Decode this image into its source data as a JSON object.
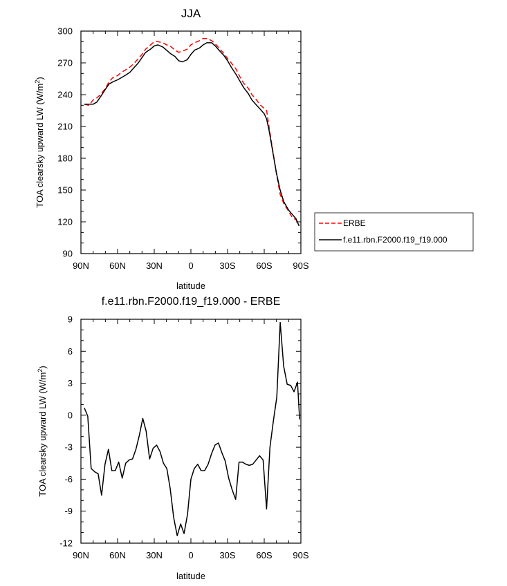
{
  "charts": [
    {
      "title": "JJA",
      "xlabel": "latitude",
      "ylabel_prefix": "TOA clearsky upward LW (W/m",
      "ylabel_sup": "2",
      "ylabel_suffix": ")"
    },
    {
      "title": "f.e11.rbn.F2000.f19_f19.000 - ERBE",
      "xlabel": "latitude",
      "ylabel_prefix": "TOA clearsky upward LW (W/m",
      "ylabel_sup": "2",
      "ylabel_suffix": ")"
    }
  ],
  "chart_data": [
    {
      "type": "line",
      "title": "JJA",
      "xlabel": "latitude",
      "ylabel": "TOA clearsky upward LW (W/m2)",
      "xlim": [
        90,
        -90
      ],
      "ylim": [
        90,
        300
      ],
      "x_ticks": [
        90,
        60,
        30,
        0,
        -30,
        -60,
        -90
      ],
      "x_tick_labels": [
        "90N",
        "60N",
        "30N",
        "0",
        "30S",
        "60S",
        "90S"
      ],
      "y_ticks": [
        90,
        120,
        150,
        180,
        210,
        240,
        270,
        300
      ],
      "y_tick_labels": [
        "90",
        "120",
        "150",
        "180",
        "210",
        "240",
        "270",
        "300"
      ],
      "legend": "outside-right",
      "series": [
        {
          "name": "ERBE",
          "color": "#ff0000",
          "dash": true,
          "x": [
            87.2,
            83.5,
            80,
            77,
            74,
            70,
            67,
            64,
            60,
            57,
            54,
            50,
            47,
            43,
            40,
            37,
            33,
            30,
            27,
            23,
            20,
            17,
            13,
            10,
            7,
            3,
            0,
            -3,
            -7,
            -10,
            -13,
            -17,
            -20,
            -23,
            -27,
            -30,
            -33,
            -37,
            -40,
            -43,
            -47,
            -50,
            -53,
            -57,
            -60,
            -62,
            -64,
            -67,
            -70,
            -73,
            -76,
            -80,
            -83,
            -86,
            -88.5
          ],
          "y": [
            231,
            230,
            235,
            237,
            240,
            246,
            252,
            256,
            258,
            261,
            263,
            266,
            269,
            274,
            278,
            283,
            287,
            290,
            290,
            289,
            287,
            286,
            282,
            280,
            281,
            283,
            287,
            289,
            291,
            293,
            293,
            291,
            288,
            284,
            279,
            274,
            270,
            264,
            257,
            251,
            246,
            240,
            236,
            230,
            227,
            225,
            209,
            187,
            165,
            146,
            137,
            130,
            124,
            122,
            117
          ]
        },
        {
          "name": "f.e11.rbn.F2000.f19_f19.000",
          "color": "#000000",
          "dash": false,
          "x": [
            87.2,
            83.5,
            80,
            77,
            74,
            70,
            67,
            64,
            60,
            57,
            54,
            50,
            47,
            43,
            40,
            37,
            33,
            30,
            27,
            23,
            20,
            17,
            13,
            10,
            7,
            3,
            0,
            -3,
            -7,
            -10,
            -13,
            -17,
            -20,
            -23,
            -27,
            -30,
            -33,
            -37,
            -40,
            -43,
            -47,
            -50,
            -53,
            -57,
            -60,
            -62,
            -64,
            -67,
            -70,
            -73,
            -76,
            -80,
            -83,
            -86,
            -88.5
          ],
          "y": [
            231,
            231,
            231,
            233,
            238,
            245,
            250,
            252,
            254,
            256,
            258,
            261,
            265,
            270,
            275,
            280,
            283,
            286,
            287,
            285,
            282,
            279,
            276,
            272,
            271,
            273,
            278,
            282,
            284,
            287,
            289,
            289,
            286,
            282,
            277,
            272,
            266,
            259,
            253,
            247,
            241,
            235,
            231,
            226,
            222,
            217,
            206,
            186,
            166,
            150,
            139,
            131,
            127,
            123,
            116
          ]
        }
      ]
    },
    {
      "type": "line",
      "title": "f.e11.rbn.F2000.f19_f19.000 - ERBE",
      "xlabel": "latitude",
      "ylabel": "TOA clearsky upward LW (W/m2)",
      "xlim": [
        90,
        -90
      ],
      "ylim": [
        -12,
        9
      ],
      "x_ticks": [
        90,
        60,
        30,
        0,
        -30,
        -60,
        -90
      ],
      "x_tick_labels": [
        "90N",
        "60N",
        "30N",
        "0",
        "30S",
        "60S",
        "90S"
      ],
      "y_ticks": [
        -12,
        -9,
        -6,
        -3,
        0,
        3,
        6,
        9
      ],
      "y_tick_labels": [
        "-12",
        "-9",
        "-6",
        "-3",
        "0",
        "3",
        "6",
        "9"
      ],
      "series": [
        {
          "color": "#000000",
          "x": [
            87.2,
            84.4,
            81.6,
            78.8,
            75.9,
            73.1,
            70.3,
            67.5,
            64.7,
            61.9,
            59.1,
            56.2,
            53.4,
            50.6,
            47.8,
            45,
            42.2,
            39.4,
            36.6,
            33.8,
            30.9,
            28.1,
            25.3,
            22.5,
            19.7,
            16.9,
            14.1,
            11.2,
            8.4,
            5.6,
            2.8,
            0,
            -2.8,
            -5.6,
            -8.4,
            -11.2,
            -14.1,
            -16.9,
            -19.7,
            -22.5,
            -25.3,
            -28.1,
            -30.9,
            -33.8,
            -36.6,
            -39.4,
            -42.2,
            -45,
            -47.8,
            -50.6,
            -53.4,
            -56.2,
            -59.1,
            -61.9,
            -64.7,
            -67.5,
            -70.3,
            -73.1,
            -75.9,
            -78.8,
            -81.6,
            -84.4,
            -87.2,
            -89
          ],
          "y": [
            0.7,
            -0.1,
            -5.0,
            -5.3,
            -5.5,
            -7.5,
            -4.6,
            -3.2,
            -5.2,
            -5.2,
            -4.4,
            -5.9,
            -4.5,
            -4.2,
            -4.1,
            -3.2,
            -1.9,
            -0.3,
            -1.5,
            -4.1,
            -3.1,
            -2.8,
            -3.4,
            -4.5,
            -5.0,
            -6.9,
            -9.6,
            -11.3,
            -10.2,
            -11.1,
            -9.3,
            -6.0,
            -5.0,
            -4.6,
            -5.2,
            -5.2,
            -4.6,
            -3.6,
            -2.8,
            -2.6,
            -3.5,
            -4.3,
            -5.9,
            -7.0,
            -7.9,
            -4.4,
            -4.4,
            -4.6,
            -4.7,
            -4.6,
            -4.2,
            -3.8,
            -4.2,
            -8.8,
            -3.0,
            -0.5,
            1.7,
            8.7,
            4.6,
            2.9,
            2.8,
            2.2,
            3.1,
            -0.4
          ]
        }
      ]
    }
  ]
}
